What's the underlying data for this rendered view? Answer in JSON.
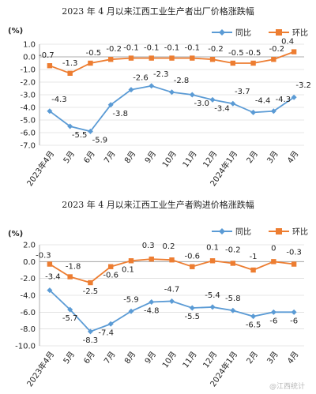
{
  "chart_data": [
    {
      "type": "line",
      "title": "2023 年 4 月以来江西工业生产者出厂价格涨跌幅",
      "ylabel": "(%)",
      "categories": [
        "2023年4月",
        "5月",
        "6月",
        "7月",
        "8月",
        "9月",
        "10月",
        "11月",
        "12月",
        "2024年1月",
        "2月",
        "3月",
        "4月"
      ],
      "ylim": [
        -7.0,
        1.0
      ],
      "yticks": [
        "1.0",
        "0.0",
        "-1.0",
        "-2.0",
        "-3.0",
        "-4.0",
        "-5.0",
        "-6.0",
        "-7.0"
      ],
      "legend": "top-right",
      "series": [
        {
          "name": "同比",
          "color": "#5b9bd5",
          "marker": "diamond",
          "values": [
            -4.3,
            -5.5,
            -5.9,
            -3.8,
            -2.6,
            -2.3,
            -2.8,
            -3.0,
            -3.4,
            -3.7,
            -4.4,
            -4.3,
            -3.2
          ],
          "labels": [
            "-4.3",
            "-5.5",
            "-5.9",
            "-3.8",
            "-2.6",
            "-2.3",
            "-2.8",
            "-3.0",
            "-3.4",
            "-3.7",
            "-4.4",
            "-4.3",
            "-3.2"
          ]
        },
        {
          "name": "环比",
          "color": "#ed7d31",
          "marker": "square",
          "values": [
            -0.7,
            -1.3,
            -0.5,
            -0.2,
            -0.1,
            -0.1,
            -0.1,
            -0.1,
            -0.2,
            -0.5,
            -0.5,
            -0.2,
            0.4
          ],
          "labels": [
            "-0.7",
            "-1.3",
            "-0.5",
            "-0.2",
            "-0.1",
            "-0.1",
            "-0.1",
            "-0.1",
            "-0.2",
            "-0.5",
            "-0.5",
            "-0.2",
            "0.4"
          ]
        }
      ]
    },
    {
      "type": "line",
      "title": "2023 年 4 月以来江西工业生产者购进价格涨跌幅",
      "ylabel": "(%)",
      "categories": [
        "2023年4月",
        "5月",
        "6月",
        "7月",
        "8月",
        "9月",
        "10月",
        "11月",
        "12月",
        "2024年1月",
        "2月",
        "3月",
        "4月"
      ],
      "ylim": [
        -10.0,
        2.0
      ],
      "yticks": [
        "2.0",
        "0.0",
        "-2.0",
        "-4.0",
        "-6.0",
        "-8.0",
        "-10.0"
      ],
      "legend": "top-right",
      "series": [
        {
          "name": "同比",
          "color": "#5b9bd5",
          "marker": "diamond",
          "values": [
            -3.4,
            -5.7,
            -8.3,
            -7.4,
            -5.9,
            -4.8,
            -4.7,
            -5.5,
            -5.4,
            -5.8,
            -6.5,
            -6.0,
            -6.0
          ],
          "labels": [
            "-3.4",
            "-5.7",
            "-8.3",
            "-7.4",
            "-5.9",
            "-4.8",
            "-4.7",
            "-5.5",
            "-5.4",
            "-5.8",
            "-6.5",
            "-6",
            "-6"
          ]
        },
        {
          "name": "环比",
          "color": "#ed7d31",
          "marker": "square",
          "values": [
            -0.3,
            -1.8,
            -2.5,
            -0.6,
            0.1,
            0.3,
            0.2,
            -0.6,
            0.1,
            -0.2,
            -1.0,
            0.0,
            -0.3
          ],
          "labels": [
            "-0.3",
            "-1.8",
            "-2.5",
            "-0.6",
            "0.1",
            "0.3",
            "0.2",
            "-0.6",
            "0.1",
            "-0.2",
            "-1",
            "0",
            "-0.3"
          ]
        }
      ]
    }
  ],
  "watermark": "@江西统计"
}
